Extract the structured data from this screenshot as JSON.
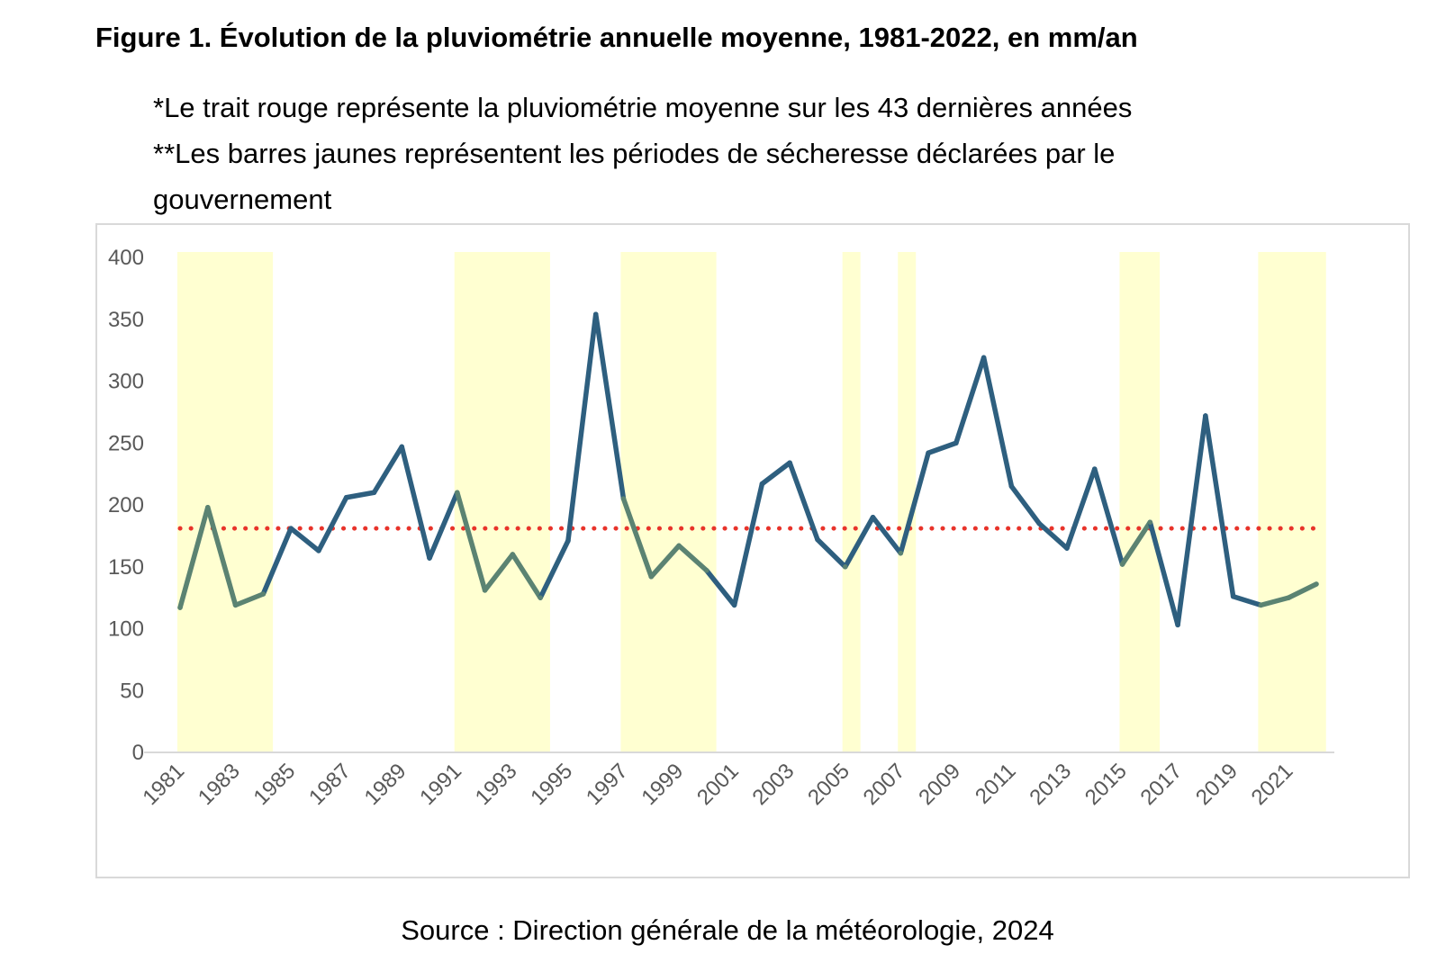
{
  "title": "Figure 1. Évolution de la pluviométrie annuelle moyenne, 1981-2022, en mm/an",
  "notes": {
    "line1": "*Le trait rouge représente la pluviométrie moyenne sur les 43 dernières années",
    "line2": "**Les barres jaunes représentent les périodes de sécheresse déclarées par le",
    "line3": "gouvernement"
  },
  "source": "Source : Direction générale de la météorologie, 2024",
  "colors": {
    "line_normal": "#2e5f7f",
    "line_drought": "#5b8372",
    "mean_line": "#e8332a",
    "drought_band": "#ffffd1",
    "axis": "#d9d9d9"
  },
  "chart_data": {
    "type": "line",
    "title": "Évolution de la pluviométrie annuelle moyenne, 1981-2022, en mm/an",
    "xlabel": "",
    "ylabel": "mm/an",
    "ylim": [
      0,
      400
    ],
    "yticks": [
      0,
      50,
      100,
      150,
      200,
      250,
      300,
      350,
      400
    ],
    "x_tick_labels": [
      "1981",
      "1983",
      "1985",
      "1987",
      "1989",
      "1991",
      "1993",
      "1995",
      "1997",
      "1999",
      "2001",
      "2003",
      "2005",
      "2007",
      "2009",
      "2011",
      "2013",
      "2015",
      "2017",
      "2019",
      "2021"
    ],
    "series": [
      {
        "name": "Pluviométrie annuelle",
        "x": [
          1981,
          1982,
          1983,
          1984,
          1985,
          1986,
          1987,
          1988,
          1989,
          1990,
          1991,
          1992,
          1993,
          1994,
          1995,
          1996,
          1997,
          1998,
          1999,
          2000,
          2001,
          2002,
          2003,
          2004,
          2005,
          2006,
          2007,
          2008,
          2009,
          2010,
          2011,
          2012,
          2013,
          2014,
          2015,
          2016,
          2017,
          2018,
          2019,
          2020,
          2021,
          2022
        ],
        "values": [
          117,
          198,
          119,
          128,
          181,
          163,
          206,
          210,
          247,
          157,
          210,
          131,
          160,
          125,
          171,
          354,
          205,
          142,
          167,
          147,
          119,
          217,
          234,
          172,
          150,
          190,
          161,
          242,
          250,
          319,
          215,
          185,
          165,
          229,
          152,
          186,
          103,
          272,
          126,
          119,
          125,
          136
        ]
      },
      {
        "name": "Pluviométrie moyenne (43 ans)",
        "x": [
          1981,
          2022
        ],
        "values": [
          181,
          181
        ]
      }
    ],
    "drought_periods": [
      {
        "start": 1981,
        "end": 1984
      },
      {
        "start": 1991,
        "end": 1994
      },
      {
        "start": 1997,
        "end": 2000
      },
      {
        "start": 2005,
        "end": 2005
      },
      {
        "start": 2007,
        "end": 2007
      },
      {
        "start": 2015,
        "end": 2016
      },
      {
        "start": 2020,
        "end": 2022
      }
    ],
    "grid": false,
    "legend": "none"
  }
}
